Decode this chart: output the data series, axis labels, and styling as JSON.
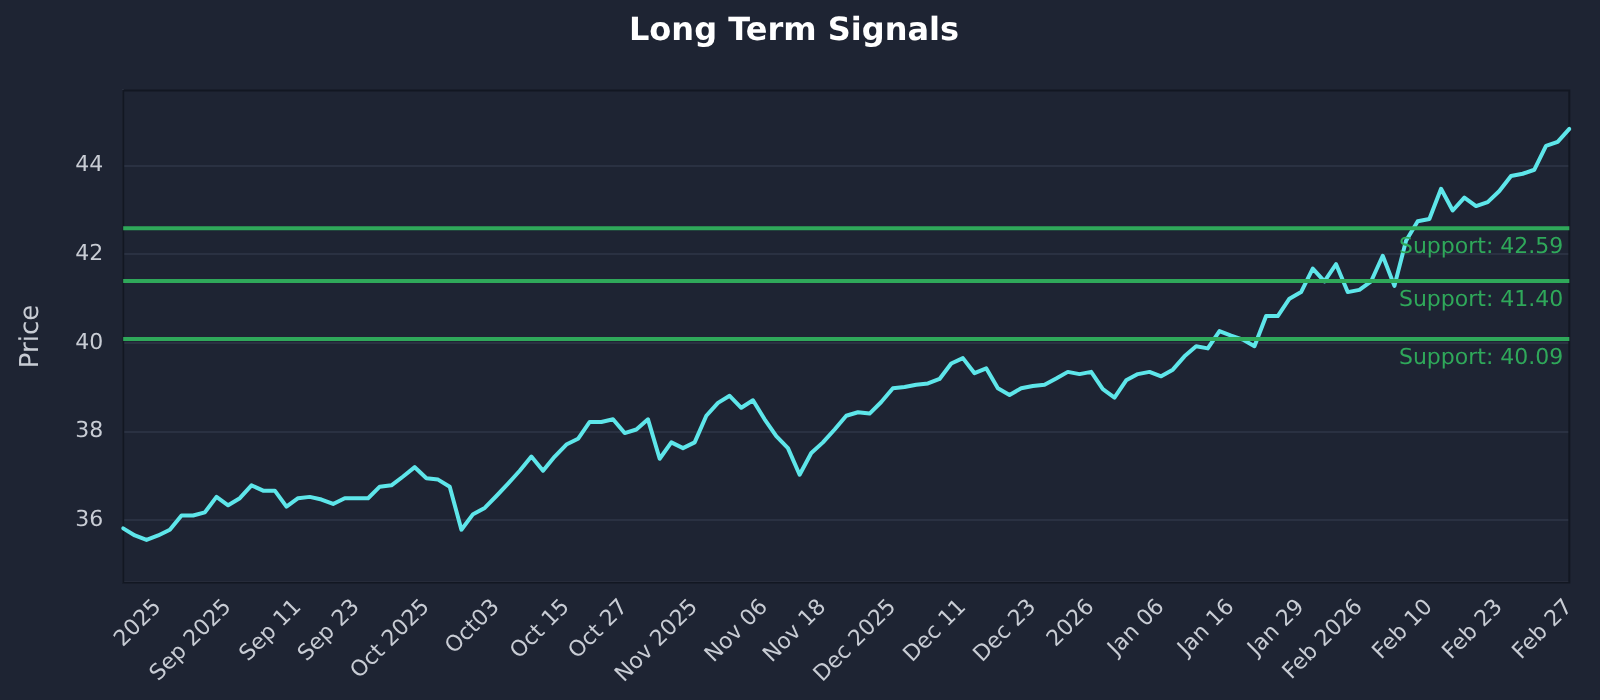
{
  "chart_data": {
    "type": "line",
    "title": "Long Term Signals",
    "ylabel": "Price",
    "categories": [
      null,
      null,
      null,
      "2025",
      null,
      null,
      null,
      null,
      null,
      "Sep 2025",
      null,
      null,
      null,
      null,
      null,
      "Sep 11",
      null,
      null,
      null,
      null,
      "Sep 23",
      null,
      null,
      null,
      null,
      null,
      "Oct 2025",
      null,
      null,
      null,
      null,
      null,
      "Oct03",
      null,
      null,
      null,
      null,
      null,
      "Oct 15",
      null,
      null,
      null,
      null,
      "Oct 27",
      null,
      null,
      null,
      null,
      null,
      "Nov 2025",
      null,
      null,
      null,
      null,
      null,
      "Nov 06",
      null,
      null,
      null,
      null,
      "Nov 18",
      null,
      null,
      null,
      null,
      null,
      "Dec 2025",
      null,
      null,
      null,
      null,
      null,
      "Dec 11",
      null,
      null,
      null,
      null,
      null,
      "Dec 23",
      null,
      null,
      null,
      null,
      "2026",
      null,
      null,
      null,
      null,
      null,
      "Jan 06",
      null,
      null,
      null,
      null,
      null,
      "Jan 16",
      null,
      null,
      null,
      null,
      null,
      "Jan 29",
      null,
      null,
      null,
      null,
      "Feb 2026",
      null,
      null,
      null,
      null,
      null,
      "Feb 10",
      null,
      null,
      null,
      null,
      null,
      "Feb 23",
      null,
      null,
      null,
      null,
      null,
      "Feb 27"
    ],
    "values": [
      35.82,
      35.66,
      35.56,
      35.66,
      35.79,
      36.11,
      36.11,
      36.18,
      36.53,
      36.34,
      36.5,
      36.79,
      36.67,
      36.67,
      36.31,
      36.5,
      36.53,
      36.47,
      36.37,
      36.5,
      36.5,
      36.5,
      36.76,
      36.79,
      36.99,
      37.2,
      36.95,
      36.92,
      36.76,
      35.79,
      36.14,
      36.28,
      36.55,
      36.83,
      37.12,
      37.44,
      37.12,
      37.44,
      37.71,
      37.84,
      38.22,
      38.22,
      38.28,
      37.97,
      38.05,
      38.28,
      37.39,
      37.76,
      37.63,
      37.76,
      38.36,
      38.65,
      38.81,
      38.54,
      38.71,
      38.28,
      37.9,
      37.63,
      37.03,
      37.52,
      37.76,
      38.05,
      38.36,
      38.44,
      38.41,
      38.67,
      38.98,
      39.01,
      39.06,
      39.09,
      39.19,
      39.54,
      39.66,
      39.32,
      39.43,
      38.98,
      38.83,
      38.98,
      39.03,
      39.06,
      39.2,
      39.35,
      39.3,
      39.35,
      38.96,
      38.77,
      39.16,
      39.3,
      39.35,
      39.25,
      39.4,
      39.7,
      39.93,
      39.88,
      40.27,
      40.17,
      40.08,
      39.93,
      40.61,
      40.61,
      41.0,
      41.15,
      41.68,
      41.39,
      41.78,
      41.15,
      41.2,
      41.39,
      41.97,
      41.29,
      42.31,
      42.75,
      42.8,
      43.48,
      42.99,
      43.28,
      43.09,
      43.18,
      43.43,
      43.77,
      43.82,
      43.91,
      44.45,
      44.54,
      44.83
    ],
    "color": "#5ee6ea",
    "marker": "none",
    "line_style": "solid",
    "ylim": [
      34.6,
      45.7
    ],
    "yticks": [
      36,
      38,
      40,
      42,
      44
    ],
    "grid": "y",
    "legend": false,
    "ref_lines": [
      {
        "axis": "y",
        "value": 42.59,
        "label": "Support: 42.59",
        "color": "#2fa85a"
      },
      {
        "axis": "y",
        "value": 41.4,
        "label": "Support: 41.40",
        "color": "#2fa85a"
      },
      {
        "axis": "y",
        "value": 40.09,
        "label": "Support: 40.09",
        "color": "#2fa85a"
      }
    ]
  }
}
